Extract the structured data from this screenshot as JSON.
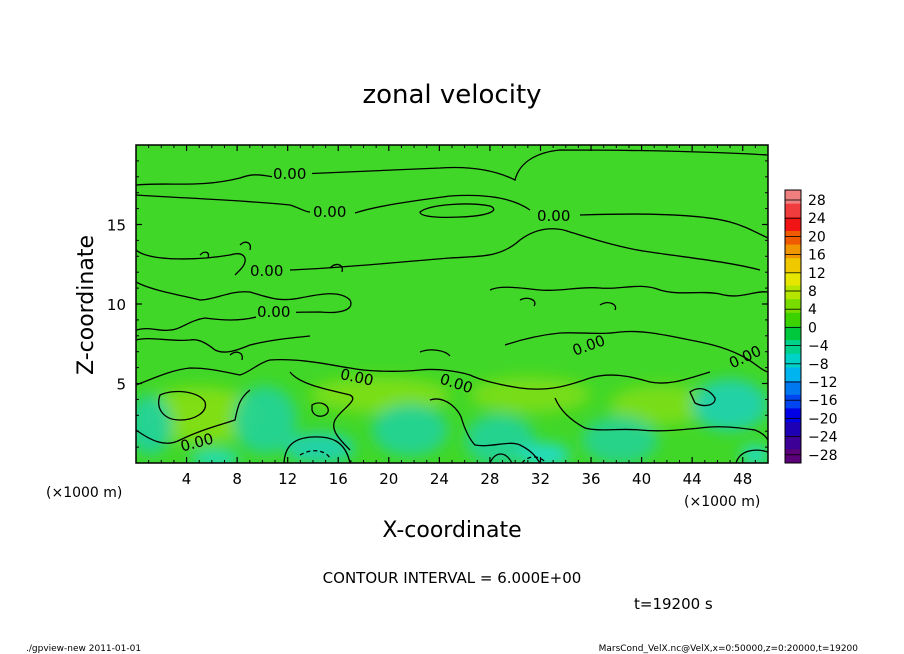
{
  "chart_data": {
    "type": "heatmap",
    "title": "zonal velocity",
    "xlabel": "X-coordinate",
    "ylabel": "Z-coordinate",
    "x_unit_left": "(×1000 m)",
    "x_unit_right": "(×1000 m)",
    "xlim": [
      0,
      50
    ],
    "ylim": [
      0,
      20
    ],
    "x_ticks": [
      4,
      8,
      12,
      16,
      20,
      24,
      28,
      32,
      36,
      40,
      44,
      48
    ],
    "x_tick_labels": [
      "4",
      "8",
      "12",
      "16",
      "20",
      "24",
      "28",
      "32",
      "36",
      "40",
      "44",
      "48"
    ],
    "y_ticks": [
      5,
      10,
      15
    ],
    "y_tick_labels": [
      "5",
      "10",
      "15"
    ],
    "colorbar": {
      "labels": [
        "28",
        "24",
        "20",
        "16",
        "12",
        "8",
        "4",
        "0",
        "−4",
        "−8",
        "−12",
        "−16",
        "−20",
        "−24",
        "−28"
      ],
      "min": -30,
      "max": 30,
      "colors": [
        "#f08080",
        "#f03c3c",
        "#f01414",
        "#f05a00",
        "#f09600",
        "#f0c800",
        "#e6e600",
        "#b4e600",
        "#78dc00",
        "#3cd200",
        "#00c83c",
        "#00d28c",
        "#00d2c8",
        "#00b4f0",
        "#0078f0",
        "#0046f0",
        "#0000e6",
        "#1e00b4",
        "#3c0096",
        "#5a0078"
      ]
    },
    "contour_labels": [
      "0.00",
      "0.00",
      "0.00",
      "0.00",
      "0.00",
      "0.00",
      "0.00",
      "0.00",
      "0.00",
      "0.00"
    ],
    "contour_interval_text": "CONTOUR INTERVAL = 6.000E+00",
    "time_text": "t=19200 s",
    "footer_left": "./gpview-new  2011-01-01",
    "footer_right": "MarsCond_VelX.nc@VelX,x=0:50000,z=0:20000,t=19200"
  }
}
